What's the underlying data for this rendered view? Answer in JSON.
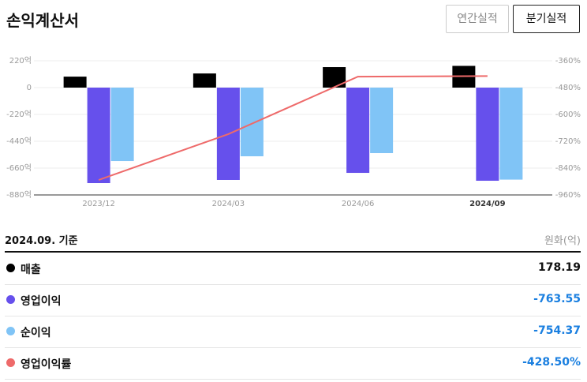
{
  "header": {
    "title": "손익계산서",
    "tabs": [
      "연간실적",
      "분기실적"
    ]
  },
  "chart_data": {
    "type": "bar",
    "categories": [
      "2023/12",
      "2024/03",
      "2024/06",
      "2024/09"
    ],
    "series": [
      {
        "name": "매출",
        "color": "#000000",
        "values": [
          90,
          116,
          168,
          178.19
        ]
      },
      {
        "name": "영업이익",
        "color": "#6650ec",
        "values": [
          -783,
          -757,
          -699,
          -763.55
        ]
      },
      {
        "name": "순이익",
        "color": "#80c4f6",
        "values": [
          -602,
          -563,
          -537,
          -754.37
        ]
      },
      {
        "name": "영업이익률",
        "type": "line",
        "axis": "y2",
        "color": "#ee6a6a",
        "values": [
          -893,
          -688,
          -431,
          -428.5
        ]
      }
    ],
    "ylim": [
      -880,
      220
    ],
    "yticks": [
      {
        "value": 220,
        "label": "220억"
      },
      0,
      {
        "value": -220,
        "label": "-220억"
      },
      {
        "value": -440,
        "label": "-440억"
      },
      {
        "value": -660,
        "label": "-660억"
      },
      {
        "value": -880,
        "label": "-880억"
      }
    ],
    "y2lim": [
      -960,
      -360
    ],
    "y2ticks": [
      {
        "value": -360,
        "label": "-360%"
      },
      {
        "value": -480,
        "label": "-480%"
      },
      {
        "value": -600,
        "label": "-600%"
      },
      {
        "value": -720,
        "label": "-720%"
      },
      {
        "value": -840,
        "label": "-840%"
      },
      {
        "value": -960,
        "label": "-960%"
      }
    ],
    "grid": true
  },
  "table": {
    "basis": "2024.09. 기준",
    "unit": "원화(억)",
    "values": [
      "178.19",
      "-763.55",
      "-754.37",
      "-428.50%"
    ]
  }
}
